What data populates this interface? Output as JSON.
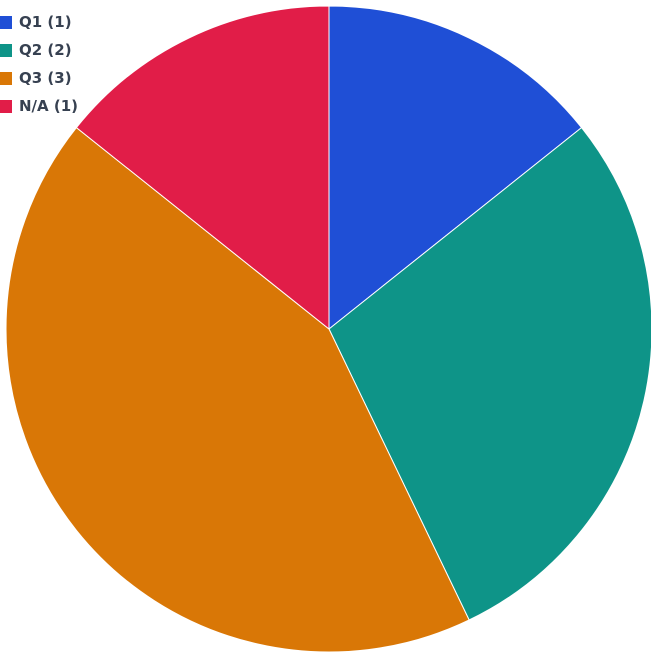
{
  "chart_data": {
    "type": "pie",
    "title": "",
    "legend_position": "top-left",
    "slices": [
      {
        "label": "Q1",
        "value": 1,
        "color": "#1f4fd6",
        "legend_label": "Q1 (1)"
      },
      {
        "label": "Q2",
        "value": 2,
        "color": "#0e9488",
        "legend_label": "Q2 (2)"
      },
      {
        "label": "Q3",
        "value": 3,
        "color": "#d97706",
        "legend_label": "Q3 (3)"
      },
      {
        "label": "N/A",
        "value": 1,
        "color": "#e11d48",
        "legend_label": "N/A (1)"
      }
    ]
  }
}
